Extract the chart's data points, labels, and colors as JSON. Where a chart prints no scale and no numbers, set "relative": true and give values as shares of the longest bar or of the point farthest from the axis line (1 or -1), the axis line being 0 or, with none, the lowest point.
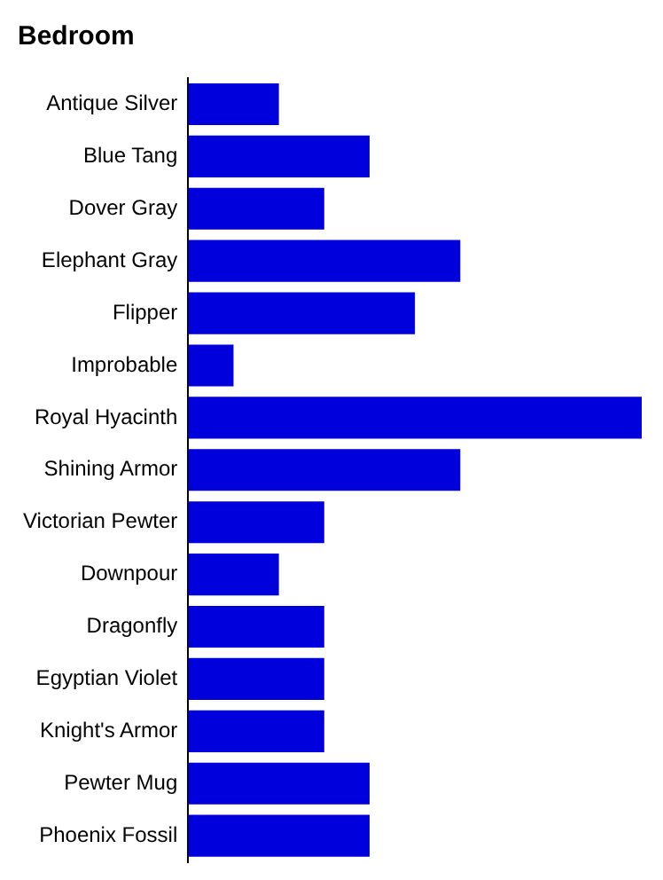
{
  "chart_data": {
    "type": "bar",
    "orientation": "horizontal",
    "relative": true,
    "title": "Bedroom",
    "categories": [
      "Antique Silver",
      "Blue Tang",
      "Dover Gray",
      "Elephant Gray",
      "Flipper",
      "Improbable",
      "Royal Hyacinth",
      "Shining Armor",
      "Victorian Pewter",
      "Downpour",
      "Dragonfly",
      "Egyptian Violet",
      "Knight's Armor",
      "Pewter Mug",
      "Phoenix Fossil"
    ],
    "values": [
      0.2,
      0.4,
      0.3,
      0.6,
      0.5,
      0.1,
      1,
      0.6,
      0.3,
      0.2,
      0.3,
      0.3,
      0.3,
      0.4,
      0.4
    ],
    "color": "#0000dd",
    "grid": false,
    "legend": false
  }
}
